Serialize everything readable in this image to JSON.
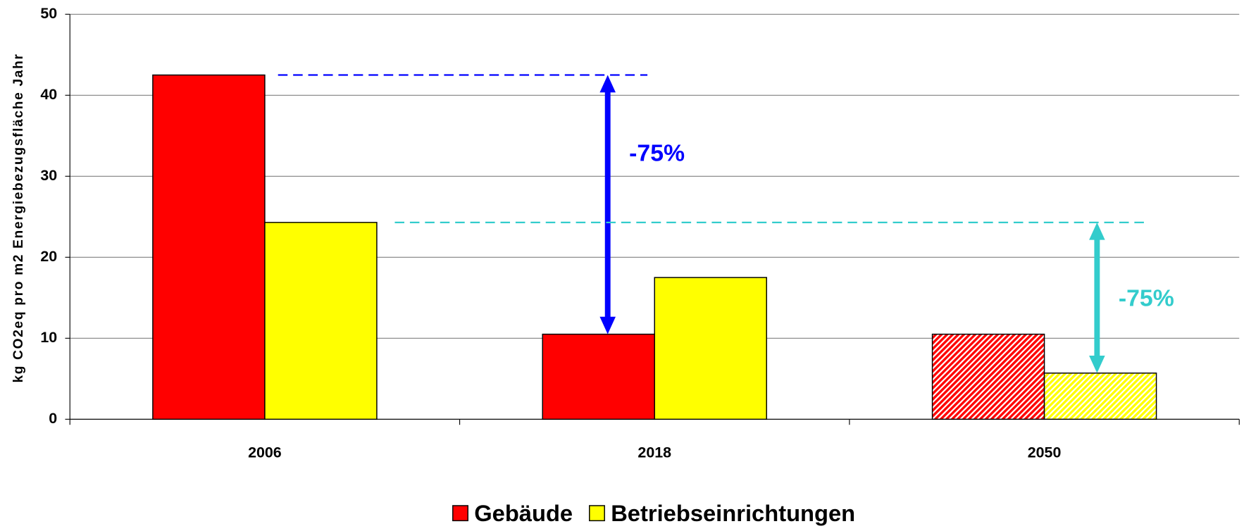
{
  "chart_data": {
    "type": "bar",
    "y_label": "kg CO2eq pro m2 Energiebezugsfläche Jahr",
    "categories": [
      "2006",
      "2018",
      "2050"
    ],
    "series": [
      {
        "name": "Gebäude",
        "color": "#ff0000",
        "values": [
          42.5,
          10.5,
          10.5
        ]
      },
      {
        "name": "Betriebseinrichtungen",
        "color": "#ffff00",
        "values": [
          24.3,
          17.5,
          5.7
        ]
      }
    ],
    "hatched": [
      false,
      false,
      true
    ],
    "ylim": [
      0,
      50
    ],
    "yticks": [
      0,
      10,
      20,
      30,
      40,
      50
    ],
    "grid": true,
    "legend": "bottom",
    "annotations": [
      {
        "text": "-75%",
        "color": "#0000ff"
      },
      {
        "text": "-75%",
        "color": "#33cccc"
      }
    ]
  }
}
